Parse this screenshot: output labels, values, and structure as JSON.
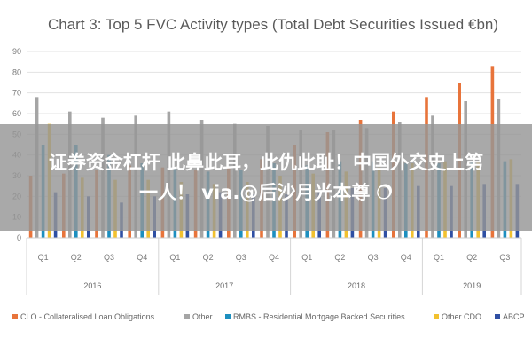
{
  "chart_data": {
    "type": "bar",
    "title": "Chart 3: Top 5 FVC Activity types (Total Debt Securities Issued €bn)",
    "xlabel": "",
    "ylabel": "",
    "ylim": [
      0,
      90
    ],
    "yticks": [
      0,
      10,
      20,
      30,
      40,
      50,
      60,
      70,
      80,
      90
    ],
    "grid": true,
    "legend_position": "bottom",
    "categories": [
      "Q1",
      "Q2",
      "Q3",
      "Q4",
      "Q1",
      "Q2",
      "Q3",
      "Q4",
      "Q1",
      "Q2",
      "Q3",
      "Q4",
      "Q1",
      "Q2",
      "Q3"
    ],
    "years": [
      {
        "label": "2016",
        "span": 4
      },
      {
        "label": "2017",
        "span": 4
      },
      {
        "label": "2018",
        "span": 4
      },
      {
        "label": "2019",
        "span": 3
      }
    ],
    "series": [
      {
        "name": "CLO - Collateralised Loan Obligations",
        "color": "#e8743b",
        "values": [
          30,
          31,
          33,
          35,
          34,
          33,
          34,
          38,
          45,
          51,
          57,
          61,
          68,
          75,
          83
        ]
      },
      {
        "name": "Other",
        "color": "#a5a5a5",
        "values": [
          68,
          61,
          58,
          59,
          61,
          57,
          55,
          54,
          52,
          52,
          53,
          56,
          59,
          66,
          67
        ]
      },
      {
        "name": "RMBS - Residential Mortgage Backed Securities",
        "color": "#1d8fbf",
        "values": [
          45,
          45,
          40,
          36,
          34,
          32,
          33,
          36,
          35,
          37,
          37,
          36,
          36,
          37,
          37
        ]
      },
      {
        "name": "Other CDO",
        "color": "#f2c12e",
        "values": [
          55,
          29,
          28,
          28,
          27,
          26,
          27,
          30,
          31,
          32,
          34,
          36,
          37,
          37,
          38
        ]
      },
      {
        "name": "ABCP",
        "color": "#2f4fa3",
        "values": [
          22,
          20,
          17,
          20,
          21,
          22,
          21,
          21,
          22,
          24,
          24,
          25,
          25,
          26,
          26
        ]
      }
    ]
  },
  "overlay": {
    "line1": "证券资金杠杆 此鼻此耳，此仇此耻！中国外交史上第",
    "line2": "一人！ via.@后沙月光本尊 🔿"
  }
}
